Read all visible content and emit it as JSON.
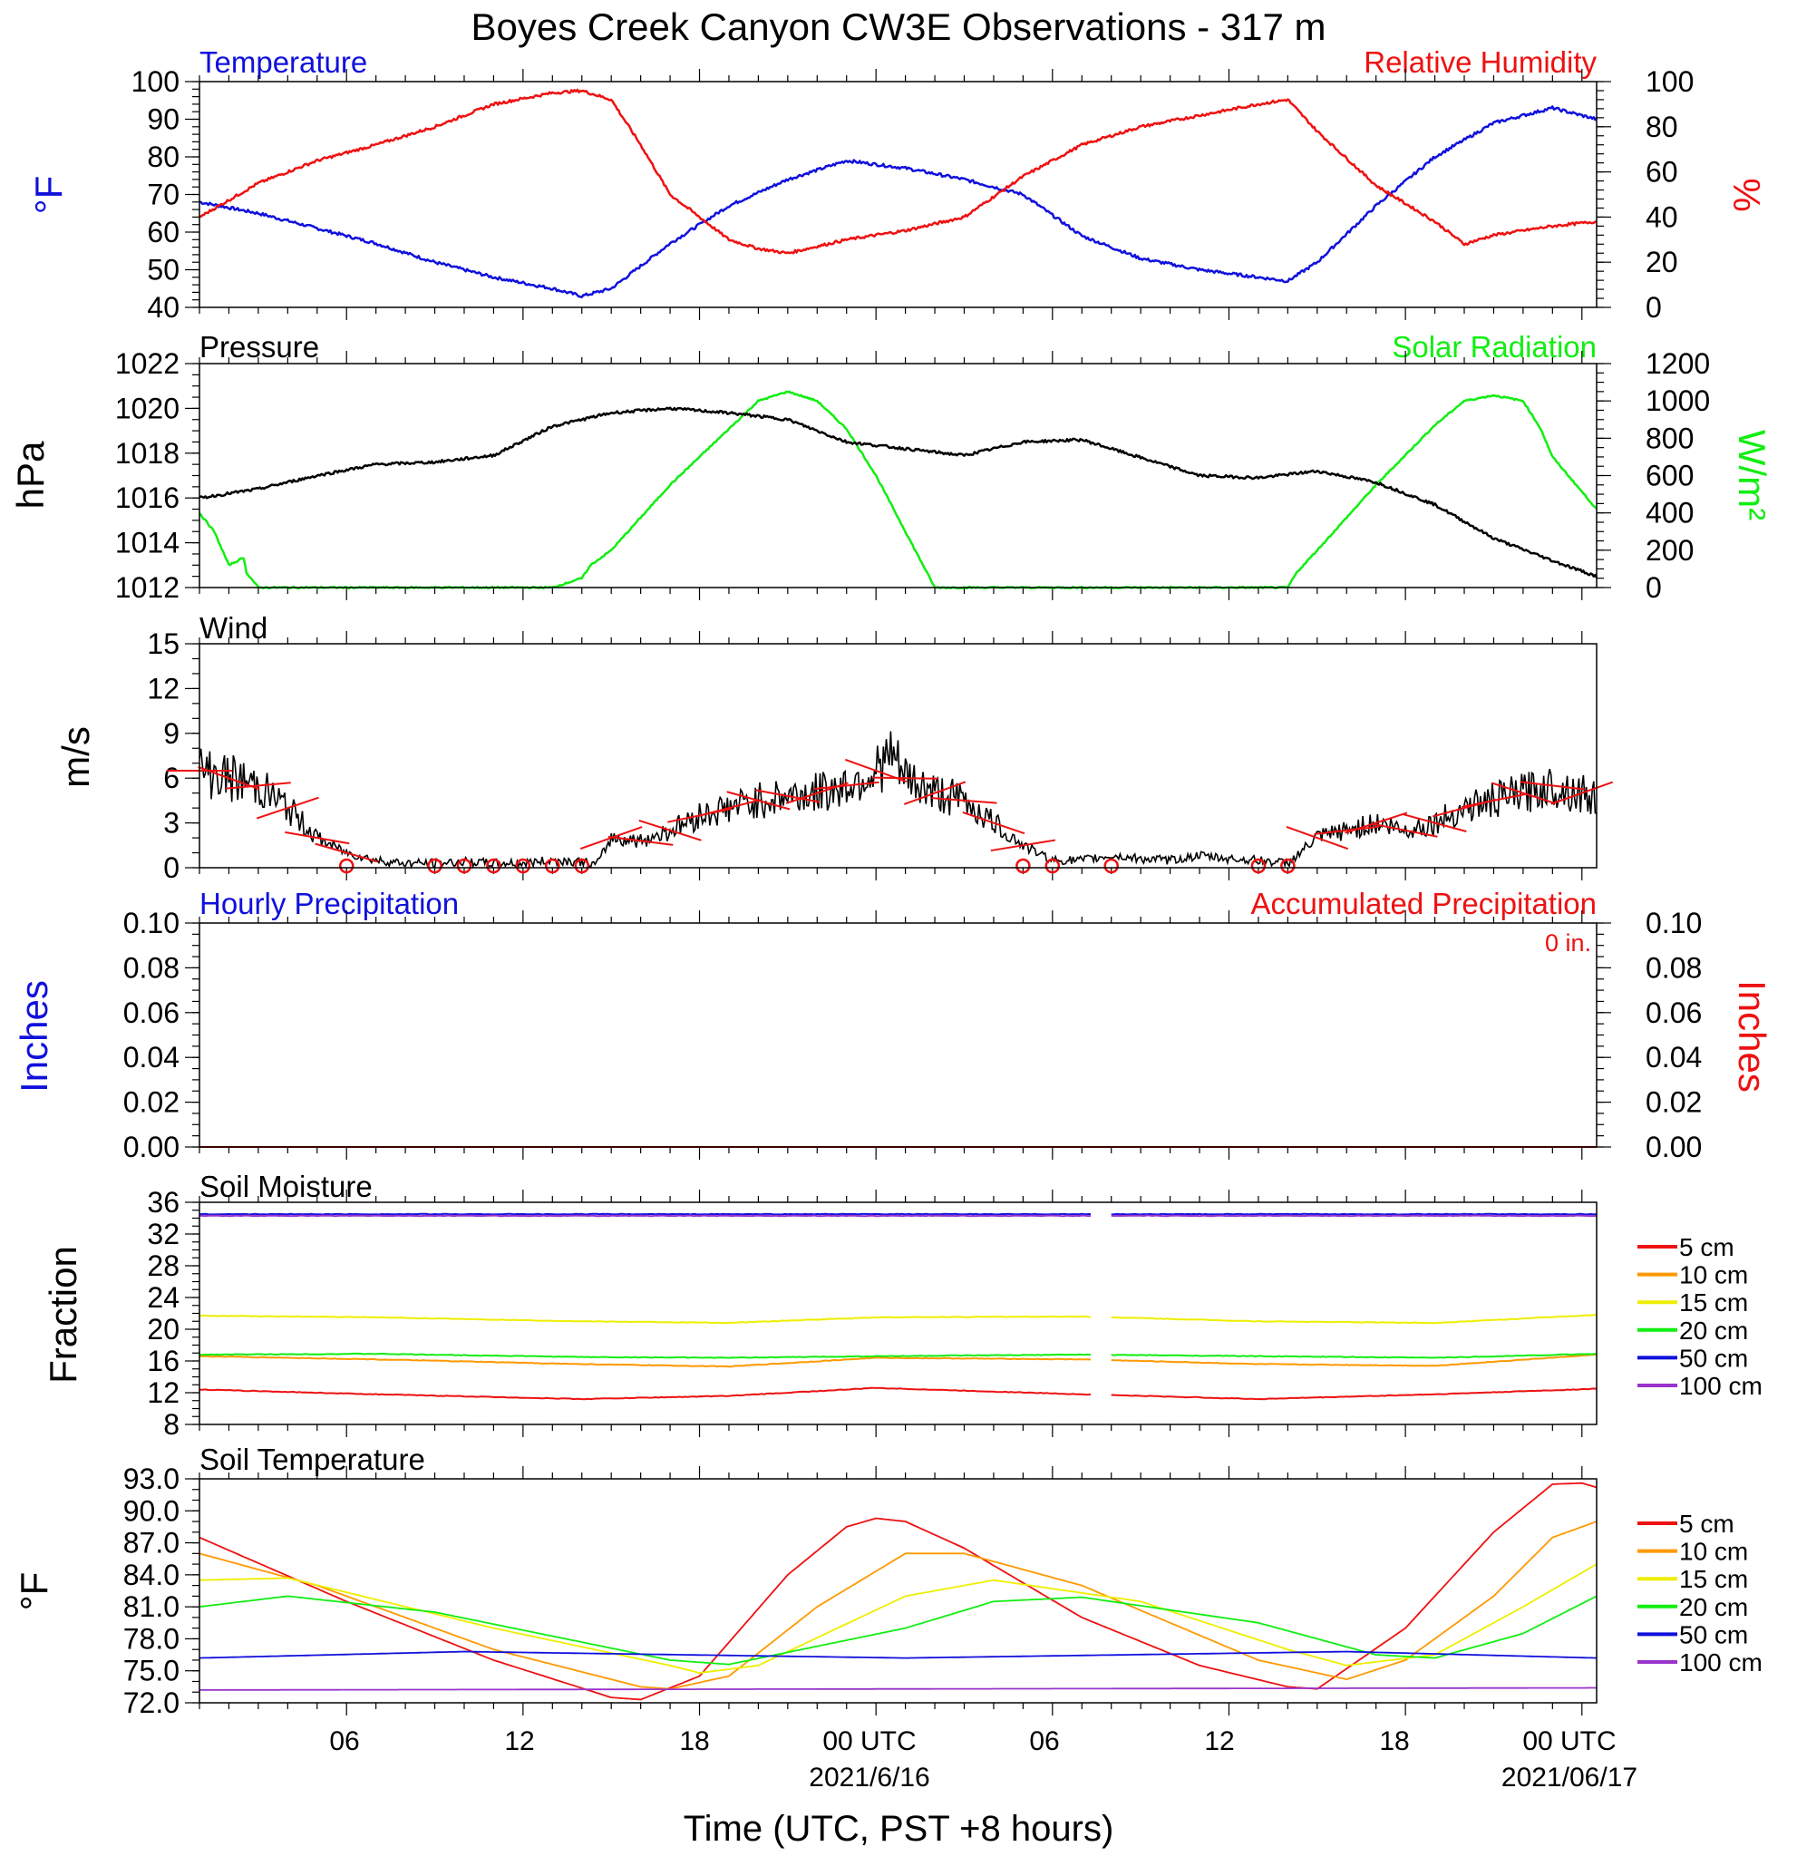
{
  "title": "Boyes Creek Canyon CW3E Observations - 317 m",
  "xlabel": "Time (UTC, PST +8 hours)",
  "x_tick_labels": [
    "06",
    "12",
    "18",
    "00 UTC",
    "06",
    "12",
    "18",
    "00 UTC"
  ],
  "x_date_labels": [
    "2021/6/16",
    "2021/06/17"
  ],
  "colors": {
    "blue": "#1010dd",
    "red": "#ee1111",
    "green": "#11ee11",
    "black": "#000000",
    "orange": "#ff9900",
    "yellow": "#eeee00",
    "purple": "#9933cc"
  },
  "panels": {
    "temperature": {
      "title_left": "Temperature",
      "title_right": "Relative Humidity",
      "ylabel_left": "°F",
      "ylabel_right": "%",
      "left_ticks": [
        "100",
        "90",
        "80",
        "70",
        "60",
        "50",
        "40"
      ],
      "right_ticks": [
        "100",
        "80",
        "60",
        "40",
        "20",
        "0"
      ]
    },
    "pressure": {
      "title_left": "Pressure",
      "title_right": "Solar Radiation",
      "ylabel_left": "hPa",
      "ylabel_right": "W/m²",
      "left_ticks": [
        "1022",
        "1020",
        "1018",
        "1016",
        "1014",
        "1012"
      ],
      "right_ticks": [
        "1200",
        "1000",
        "800",
        "600",
        "400",
        "200",
        "0"
      ]
    },
    "wind": {
      "title_left": "Wind",
      "ylabel_left": "m/s",
      "left_ticks": [
        "15",
        "12",
        "9",
        "6",
        "3",
        "0"
      ]
    },
    "precip": {
      "title_left": "Hourly Precipitation",
      "title_right": "Accumulated Precipitation",
      "accum_label": "0 in.",
      "ylabel_left": "Inches",
      "ylabel_right": "Inches",
      "left_ticks": [
        "0.10",
        "0.08",
        "0.06",
        "0.04",
        "0.02",
        "0.00"
      ],
      "right_ticks": [
        "0.10",
        "0.08",
        "0.06",
        "0.04",
        "0.02",
        "0.00"
      ]
    },
    "soil_moisture": {
      "title_left": "Soil Moisture",
      "ylabel_left": "Fraction",
      "left_ticks": [
        "36",
        "32",
        "28",
        "24",
        "20",
        "16",
        "12",
        "8"
      ],
      "legend": [
        "5 cm",
        "10 cm",
        "15 cm",
        "20 cm",
        "50 cm",
        "100 cm"
      ]
    },
    "soil_temp": {
      "title_left": "Soil Temperature",
      "ylabel_left": "°F",
      "left_ticks": [
        "93.0",
        "90.0",
        "87.0",
        "84.0",
        "81.0",
        "78.0",
        "75.0",
        "72.0"
      ],
      "legend": [
        "5 cm",
        "10 cm",
        "15 cm",
        "20 cm",
        "50 cm",
        "100 cm"
      ]
    }
  },
  "chart_data": [
    {
      "type": "line",
      "panel": "temperature",
      "x_unit": "hours since 2021-06-15 01 UTC",
      "series": [
        {
          "name": "Temperature",
          "axis": "left",
          "ylim": [
            40,
            100
          ],
          "x": [
            0,
            2,
            4,
            6,
            8,
            10,
            12,
            13,
            14,
            16,
            18,
            20,
            22,
            24,
            26,
            28,
            30,
            32,
            34,
            36,
            37,
            38,
            40,
            42,
            44,
            46,
            47.5
          ],
          "values": [
            68,
            65,
            61,
            57,
            52,
            48,
            45,
            43,
            45,
            57,
            67,
            74,
            79,
            77,
            74,
            70,
            59,
            53,
            50,
            48,
            47,
            52,
            67,
            80,
            89,
            93,
            90
          ]
        },
        {
          "name": "Relative Humidity",
          "axis": "right",
          "ylim": [
            0,
            100
          ],
          "x": [
            0,
            2,
            4,
            6,
            8,
            10,
            12,
            13,
            14,
            15,
            16,
            17,
            18,
            19,
            20,
            22,
            24,
            26,
            28,
            30,
            32,
            34,
            36,
            37,
            38,
            40,
            42,
            43,
            44,
            46,
            47.5
          ],
          "values": [
            40,
            55,
            65,
            72,
            80,
            90,
            95,
            96,
            92,
            72,
            50,
            40,
            30,
            26,
            24,
            30,
            34,
            40,
            58,
            72,
            80,
            85,
            90,
            92,
            78,
            54,
            38,
            28,
            32,
            36,
            38
          ]
        }
      ]
    },
    {
      "type": "line",
      "panel": "pressure",
      "x_unit": "hours since 2021-06-15 01 UTC",
      "series": [
        {
          "name": "Pressure",
          "axis": "left",
          "ylim": [
            1012,
            1022
          ],
          "x": [
            0,
            2,
            4,
            6,
            8,
            10,
            12,
            14,
            16,
            18,
            20,
            22,
            24,
            26,
            28,
            30,
            32,
            34,
            36,
            38,
            40,
            42,
            44,
            46,
            47.5
          ],
          "values": [
            1016.0,
            1016.4,
            1017.0,
            1017.5,
            1017.6,
            1017.9,
            1019.2,
            1019.8,
            1020.0,
            1019.8,
            1019.5,
            1018.5,
            1018.2,
            1017.9,
            1018.5,
            1018.6,
            1017.8,
            1017.0,
            1016.9,
            1017.2,
            1016.7,
            1015.7,
            1014.2,
            1013.2,
            1012.5
          ]
        },
        {
          "name": "Solar Radiation",
          "axis": "right",
          "ylim": [
            0,
            1200
          ],
          "x": [
            0,
            0.5,
            1,
            1.5,
            1.6,
            2,
            3,
            10,
            12,
            13,
            13.3,
            14,
            16,
            18,
            19,
            20,
            21,
            22,
            23,
            24,
            24.5,
            25,
            26,
            36,
            37,
            37.3,
            38,
            40,
            42,
            43,
            44,
            45,
            45.6,
            46,
            47.5
          ],
          "values": [
            400,
            300,
            120,
            160,
            80,
            0,
            0,
            0,
            0,
            50,
            120,
            200,
            550,
            850,
            1000,
            1050,
            1000,
            850,
            600,
            300,
            150,
            0,
            0,
            0,
            0,
            80,
            200,
            550,
            870,
            1000,
            1030,
            1000,
            850,
            700,
            420
          ]
        }
      ]
    },
    {
      "type": "line",
      "panel": "wind",
      "x_unit": "hours since 2021-06-15 01 UTC",
      "ylim": [
        0,
        15
      ],
      "series": [
        {
          "name": "Wind",
          "x": [
            0,
            1,
            2,
            3,
            4,
            5,
            6,
            7,
            8,
            9,
            10,
            11,
            12,
            13,
            13.5,
            14,
            15,
            16,
            17,
            18,
            19,
            20,
            21,
            22,
            23,
            23.5,
            24,
            25,
            26,
            27,
            28,
            29,
            30,
            31,
            32,
            33,
            34,
            35,
            36,
            37,
            38,
            39,
            40,
            41,
            42,
            43,
            44,
            45,
            46,
            47,
            47.5
          ],
          "values": [
            6.5,
            6.0,
            5.5,
            4.0,
            2.0,
            1.0,
            0.5,
            0.3,
            0.3,
            0.4,
            0.3,
            0.3,
            0.5,
            0.4,
            0.2,
            2.0,
            1.8,
            2.5,
            3.5,
            4.0,
            4.5,
            4.8,
            5.0,
            5.5,
            6.5,
            7.5,
            6.0,
            5.0,
            4.5,
            3.0,
            1.5,
            0.5,
            0.5,
            0.8,
            0.6,
            0.5,
            0.8,
            0.6,
            0.5,
            0.3,
            2.0,
            2.5,
            3.0,
            2.5,
            3.0,
            4.0,
            4.5,
            5.0,
            5.5,
            5.0,
            4.5
          ]
        }
      ],
      "calm_markers_x": [
        5,
        8,
        9,
        10,
        11,
        12,
        13,
        28,
        29,
        31,
        36,
        37
      ]
    },
    {
      "type": "line",
      "panel": "precip",
      "x_unit": "hours since 2021-06-15 01 UTC",
      "ylim": [
        0,
        0.1
      ],
      "series": [
        {
          "name": "Hourly Precipitation",
          "x": [
            0,
            47.5
          ],
          "values": [
            0,
            0
          ]
        },
        {
          "name": "Accumulated Precipitation",
          "x": [
            0,
            47.5
          ],
          "values": [
            0,
            0
          ]
        }
      ]
    },
    {
      "type": "line",
      "panel": "soil_moisture",
      "x_unit": "hours since 2021-06-15 01 UTC",
      "ylim": [
        8,
        36
      ],
      "gap_hours": [
        30.4,
        31.0
      ],
      "series": [
        {
          "name": "5 cm",
          "x": [
            0,
            6,
            13,
            18,
            23,
            30,
            36,
            42,
            47.5
          ],
          "values": [
            12.4,
            11.8,
            11.2,
            11.6,
            12.6,
            11.8,
            11.2,
            11.8,
            12.5
          ]
        },
        {
          "name": "10 cm",
          "x": [
            0,
            6,
            13,
            18,
            23,
            30,
            36,
            42,
            47.5
          ],
          "values": [
            16.6,
            16.2,
            15.6,
            15.3,
            16.4,
            16.2,
            15.6,
            15.4,
            16.8
          ]
        },
        {
          "name": "15 cm",
          "x": [
            0,
            6,
            13,
            18,
            23,
            30,
            36,
            42,
            47.5
          ],
          "values": [
            21.7,
            21.5,
            21.0,
            20.8,
            21.5,
            21.6,
            21.0,
            20.8,
            21.8
          ]
        },
        {
          "name": "20 cm",
          "x": [
            0,
            6,
            13,
            18,
            23,
            30,
            36,
            42,
            47.5
          ],
          "values": [
            16.8,
            16.9,
            16.5,
            16.4,
            16.6,
            16.8,
            16.6,
            16.4,
            16.9
          ]
        },
        {
          "name": "50 cm",
          "x": [
            0,
            47.5
          ],
          "values": [
            34.5,
            34.5
          ]
        },
        {
          "name": "100 cm",
          "x": [
            0,
            47.5
          ],
          "values": [
            34.3,
            34.3
          ]
        }
      ]
    },
    {
      "type": "line",
      "panel": "soil_temp",
      "x_unit": "hours since 2021-06-15 01 UTC",
      "ylim": [
        72,
        93
      ],
      "series": [
        {
          "name": "5 cm",
          "x": [
            0,
            5,
            10,
            14,
            15,
            17,
            20,
            22,
            23,
            24,
            26,
            30,
            34,
            37,
            38,
            41,
            44,
            46,
            47,
            47.5
          ],
          "values": [
            87.5,
            81.5,
            76.0,
            72.5,
            72.3,
            74.5,
            84.0,
            88.5,
            89.3,
            89.0,
            86.5,
            80.0,
            75.5,
            73.5,
            73.3,
            79.0,
            88.0,
            92.5,
            92.6,
            92.2
          ]
        },
        {
          "name": "10 cm",
          "x": [
            0,
            4,
            10,
            15,
            16,
            18,
            21,
            24,
            26,
            30,
            36,
            39,
            41,
            44,
            46,
            47.5
          ],
          "values": [
            86.0,
            83.0,
            77.0,
            73.5,
            73.3,
            74.5,
            81.0,
            86.0,
            86.0,
            83.0,
            76.0,
            74.2,
            76.0,
            82.0,
            87.5,
            89.0
          ]
        },
        {
          "name": "15 cm",
          "x": [
            0,
            3,
            10,
            16,
            17,
            19,
            24,
            27,
            32,
            37,
            39,
            42,
            45,
            47.5
          ],
          "values": [
            83.5,
            83.7,
            79.0,
            75.5,
            74.8,
            75.5,
            82.0,
            83.5,
            81.5,
            77.0,
            75.5,
            76.5,
            81.0,
            85.0
          ]
        },
        {
          "name": "20 cm",
          "x": [
            0,
            3,
            8,
            16,
            18,
            24,
            27,
            30,
            36,
            40,
            42,
            45,
            47.5
          ],
          "values": [
            81.0,
            82.0,
            80.5,
            76.0,
            75.6,
            79.0,
            81.5,
            81.9,
            79.5,
            76.5,
            76.2,
            78.5,
            82.0
          ]
        },
        {
          "name": "50 cm",
          "x": [
            0,
            9,
            24,
            39,
            47.5
          ],
          "values": [
            76.2,
            76.8,
            76.2,
            76.8,
            76.2
          ]
        },
        {
          "name": "100 cm",
          "x": [
            0,
            47.5
          ],
          "values": [
            73.2,
            73.4
          ]
        }
      ]
    }
  ]
}
